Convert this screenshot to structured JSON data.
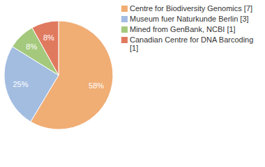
{
  "chart_data": {
    "type": "pie",
    "categories": [
      "Centre for Biodiversity Genomics [7]",
      "Museum fuer Naturkunde Berlin [3]",
      "Mined from GenBank, NCBI [1]",
      "Canadian Centre for DNA Barcoding [1]"
    ],
    "values": [
      58,
      25,
      8,
      8
    ],
    "value_labels": [
      "58%",
      "25%",
      "8%",
      "8%"
    ],
    "colors": [
      "#f0ad74",
      "#a3bde1",
      "#a4c97c",
      "#e07a5f"
    ],
    "data_labels": true,
    "legend": "right"
  }
}
